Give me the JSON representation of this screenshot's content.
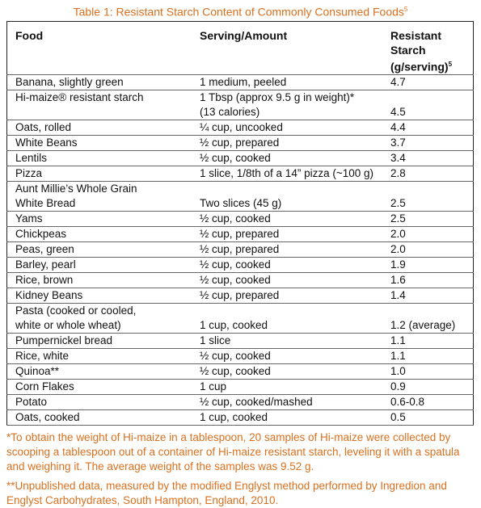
{
  "title": "Table 1: Resistant Starch Content of Commonly Consumed Foods",
  "title_note": "5",
  "table": {
    "headers": [
      "Food",
      "Serving/Amount",
      "Resistant Starch\n(g/serving)"
    ],
    "header_note": "5",
    "rows": [
      [
        "Banana, slightly green",
        "1 medium, peeled",
        "4.7"
      ],
      [
        "Hi-maize® resistant starch",
        "1 Tbsp (approx 9.5 g in weight)*\n(13 calories)",
        "4.5"
      ],
      [
        "Oats, rolled",
        "¼ cup, uncooked",
        "4.4"
      ],
      [
        "White Beans",
        "½ cup, prepared",
        "3.7"
      ],
      [
        "Lentils",
        "½ cup, cooked",
        "3.4"
      ],
      [
        "Pizza",
        "1 slice, 1/8th of a 14” pizza (~100 g)",
        "2.8"
      ],
      [
        "Aunt Millie’s Whole Grain\nWhite Bread",
        "Two slices (45 g)",
        "2.5"
      ],
      [
        "Yams",
        "½ cup, cooked",
        "2.5"
      ],
      [
        "Chickpeas",
        "½ cup, prepared",
        "2.0"
      ],
      [
        "Peas, green",
        "½ cup, prepared",
        "2.0"
      ],
      [
        "Barley, pearl",
        "½ cup, cooked",
        "1.9"
      ],
      [
        "Rice, brown",
        "½ cup, cooked",
        "1.6"
      ],
      [
        "Kidney Beans",
        "½ cup, prepared",
        "1.4"
      ],
      [
        "Pasta (cooked or cooled,\nwhite or whole wheat)",
        "1 cup, cooked",
        "1.2  (average)"
      ],
      [
        "Pumpernickel bread",
        "1 slice",
        "1.1"
      ],
      [
        "Rice, white",
        "½ cup, cooked",
        "1.1"
      ],
      [
        "Quinoa**",
        "½ cup, cooked",
        "1.0"
      ],
      [
        "Corn Flakes",
        "1 cup",
        "0.9"
      ],
      [
        "Potato",
        "½ cup, cooked/mashed",
        "0.6-0.8"
      ],
      [
        "Oats, cooked",
        "1 cup, cooked",
        "0.5"
      ]
    ]
  },
  "footnotes": [
    "*To obtain the weight of Hi-maize in a tablespoon, 20 samples of Hi-maize were collected by scooping a tablespoon out of a container of Hi-maize resistant starch, leveling it with a spatula and weighing it. The average weight of the samples was 9.52 g.",
    "**Unpublished data, measured by the modified Englyst method performed by Ingredion and Englyst Carbohydrates, South Hampton, England, 2010."
  ]
}
